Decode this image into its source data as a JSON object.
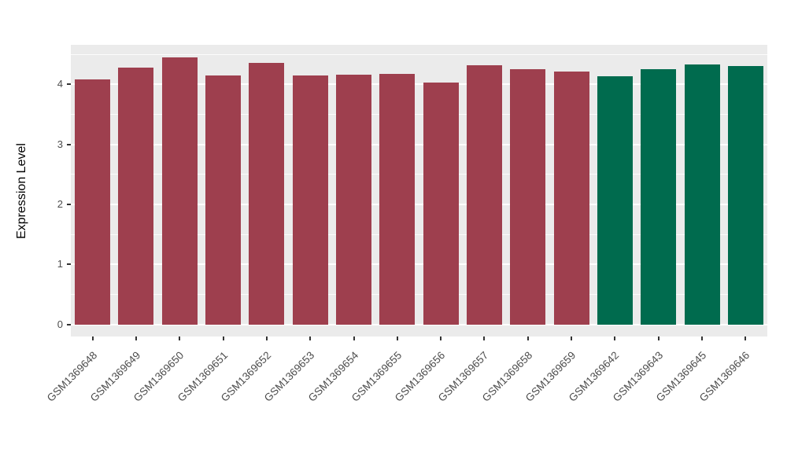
{
  "chart_data": {
    "type": "bar",
    "title": "",
    "xlabel": "",
    "ylabel": "Expression Level",
    "categories": [
      "GSM1369648",
      "GSM1369649",
      "GSM1369650",
      "GSM1369651",
      "GSM1369652",
      "GSM1369653",
      "GSM1369654",
      "GSM1369655",
      "GSM1369656",
      "GSM1369657",
      "GSM1369658",
      "GSM1369659",
      "GSM1369642",
      "GSM1369643",
      "GSM1369645",
      "GSM1369646"
    ],
    "values": [
      4.08,
      4.28,
      4.45,
      4.15,
      4.36,
      4.15,
      4.16,
      4.18,
      4.03,
      4.32,
      4.25,
      4.21,
      4.13,
      4.26,
      4.33,
      4.3
    ],
    "bar_colors": [
      "#9E3F4E",
      "#9E3F4E",
      "#9E3F4E",
      "#9E3F4E",
      "#9E3F4E",
      "#9E3F4E",
      "#9E3F4E",
      "#9E3F4E",
      "#9E3F4E",
      "#9E3F4E",
      "#9E3F4E",
      "#9E3F4E",
      "#006B4E",
      "#006B4E",
      "#006B4E",
      "#006B4E"
    ],
    "group_colors": {
      "group1": "#9E3F4E",
      "group2": "#006B4E"
    },
    "yticks": [
      0,
      1,
      2,
      3,
      4
    ],
    "minor_yticks": [
      0.5,
      1.5,
      2.5,
      3.5,
      4.5
    ],
    "ylim": [
      -0.2,
      4.66
    ],
    "panel_background": "#EBEBEB",
    "grid_color": "#FFFFFF",
    "legend": "none",
    "grid": "on"
  },
  "layout_meta": {
    "bar_count": "16"
  }
}
